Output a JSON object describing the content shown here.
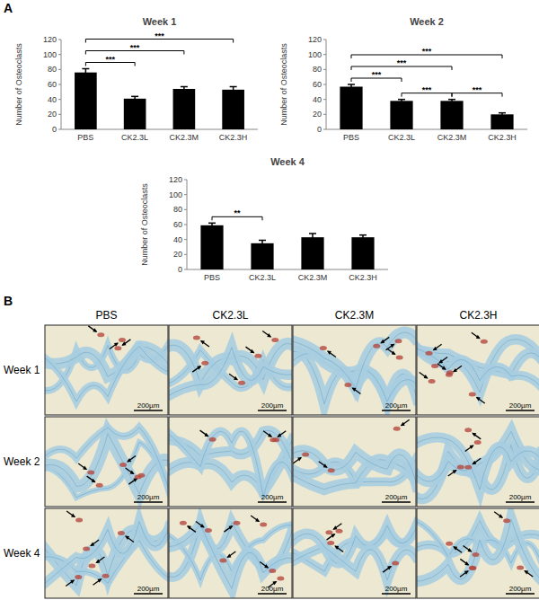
{
  "chart_data": [
    {
      "type": "bar",
      "title": "Week 1",
      "y_label": "Number of Osteoclasts",
      "categories": [
        "PBS",
        "CK2.3L",
        "CK2.3M",
        "CK2.3H"
      ],
      "values": [
        76,
        41,
        54,
        53
      ],
      "errors": [
        5,
        3,
        3,
        4
      ],
      "color": "#000000",
      "ylim": [
        0,
        120
      ],
      "yticks": [
        0,
        20,
        40,
        60,
        80,
        100,
        120
      ],
      "annotations": [
        {
          "from": 0,
          "to": 1,
          "label": "***"
        },
        {
          "from": 0,
          "to": 2,
          "label": "***"
        },
        {
          "from": 0,
          "to": 3,
          "label": "***"
        }
      ]
    },
    {
      "type": "bar",
      "title": "Week 2",
      "y_label": "Number of Osteoclasts",
      "categories": [
        "PBS",
        "CK2.3L",
        "CK2.3M",
        "CK2.3H"
      ],
      "values": [
        57,
        38,
        38,
        20
      ],
      "errors": [
        3,
        2,
        2,
        2
      ],
      "color": "#000000",
      "ylim": [
        0,
        120
      ],
      "yticks": [
        0,
        20,
        40,
        60,
        80,
        100,
        120
      ],
      "annotations": [
        {
          "from": 0,
          "to": 1,
          "label": "***"
        },
        {
          "from": 1,
          "to": 2,
          "label": "***"
        },
        {
          "from": 2,
          "to": 3,
          "label": "***"
        },
        {
          "from": 0,
          "to": 2,
          "label": "***"
        },
        {
          "from": 0,
          "to": 3,
          "label": "***"
        }
      ]
    },
    {
      "type": "bar",
      "title": "Week 4",
      "y_label": "Number of Osteoclasts",
      "categories": [
        "PBS",
        "CK2.3L",
        "CK2.3M",
        "CK2.3H"
      ],
      "values": [
        59,
        35,
        43,
        43
      ],
      "errors": [
        3,
        4,
        5,
        3
      ],
      "color": "#000000",
      "ylim": [
        0,
        120
      ],
      "yticks": [
        0,
        20,
        40,
        60,
        80,
        100,
        120
      ],
      "annotations": [
        {
          "from": 0,
          "to": 1,
          "label": "**"
        }
      ]
    }
  ],
  "panel_labels": [
    "A",
    "B"
  ],
  "micrographs": {
    "columns": [
      "PBS",
      "CK2.3L",
      "CK2.3M",
      "CK2.3H"
    ],
    "rows": [
      "Week 1",
      "Week 2",
      "Week 4"
    ],
    "scale_bar": "200µm"
  }
}
